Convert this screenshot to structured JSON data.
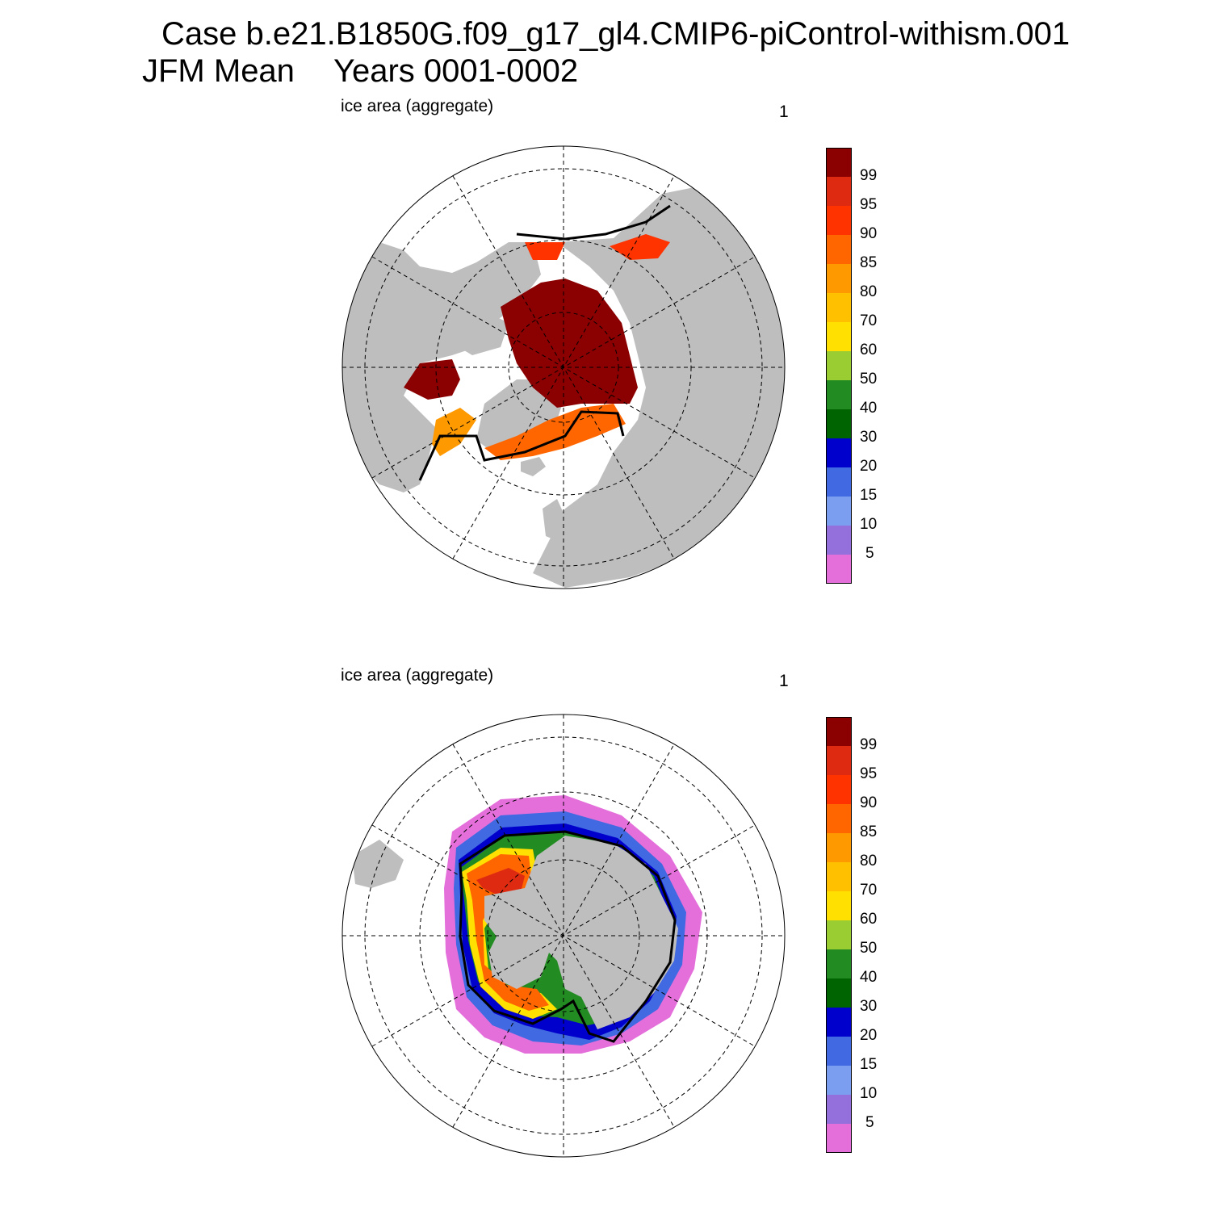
{
  "header": {
    "case_line": "Case b.e21.B1850G.f09_g17_gl4.CMIP6-piControl-withism.001",
    "season": "JFM Mean",
    "years": "Years 0001-0002"
  },
  "panels": [
    {
      "id": "north",
      "label": "ice area  (aggregate)",
      "number": "1",
      "hemisphere": "Northern"
    },
    {
      "id": "south",
      "label": "ice area  (aggregate)",
      "number": "1",
      "hemisphere": "Southern"
    }
  ],
  "colorbar": {
    "levels": [
      "5",
      "10",
      "15",
      "20",
      "30",
      "40",
      "50",
      "60",
      "70",
      "80",
      "85",
      "90",
      "95",
      "99"
    ],
    "colors": [
      "#e46fdb",
      "#9370db",
      "#7b9ef0",
      "#4169e1",
      "#0000cd",
      "#006400",
      "#228b22",
      "#9acd32",
      "#ffe000",
      "#ffc000",
      "#ff9900",
      "#ff6600",
      "#ff3300",
      "#dd2a10",
      "#8b0000"
    ]
  },
  "map_colors": {
    "land": "#bebebe",
    "ocean": "#ffffff",
    "ice_full": "#8b0000",
    "ice_edge_line": "#000000"
  }
}
